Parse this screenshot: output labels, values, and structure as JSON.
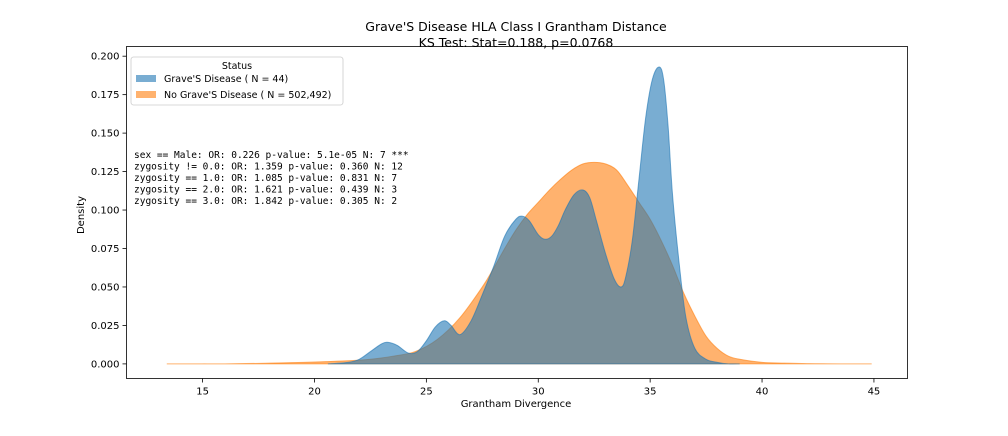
{
  "chart_data": {
    "type": "area",
    "title": "Grave'S Disease HLA Class I Grantham Distance",
    "subtitle": "KS Test: Stat=0.188, p=0.0768",
    "xlabel": "Grantham Divergence",
    "ylabel": "Density",
    "xlim": [
      11.6,
      46.5
    ],
    "ylim": [
      -0.0095,
      0.2063
    ],
    "xticks": [
      15,
      20,
      25,
      30,
      35,
      40,
      45
    ],
    "yticks": [
      0.0,
      0.025,
      0.05,
      0.075,
      0.1,
      0.125,
      0.15,
      0.175,
      0.2
    ],
    "grid": false,
    "legend": {
      "title": "Status",
      "placement": "top-left",
      "entries": [
        "Grave'S Disease ( N = 44)",
        "No Grave'S Disease ( N = 502,492)"
      ]
    },
    "annotations": [
      "sex == Male: OR: 0.226 p-value: 5.1e-05 N: 7 ***",
      "zygosity != 0.0: OR: 1.359 p-value: 0.360 N: 12",
      "zygosity == 1.0: OR: 1.085 p-value: 0.831 N: 7",
      "zygosity == 2.0: OR: 1.621 p-value: 0.439 N: 3",
      "zygosity == 3.0: OR: 1.842 p-value: 0.305 N: 2"
    ],
    "series": [
      {
        "name": "Grave'S Disease ( N = 44)",
        "color": "#1f77b4",
        "x": [
          20.6,
          21.5,
          22.0,
          22.5,
          23.0,
          23.3,
          23.7,
          24.2,
          24.6,
          25.0,
          25.4,
          25.8,
          26.1,
          26.5,
          27.0,
          27.5,
          28.0,
          28.5,
          29.0,
          29.3,
          29.6,
          30.0,
          30.3,
          30.6,
          30.9,
          31.2,
          31.6,
          32.0,
          32.3,
          32.6,
          33.0,
          33.4,
          33.7,
          33.9,
          34.2,
          34.5,
          34.8,
          35.1,
          35.4,
          35.6,
          35.8,
          36.0,
          36.3,
          36.6,
          37.0,
          37.5,
          38.0,
          38.5,
          39.0
        ],
        "values": [
          0.0,
          0.001,
          0.003,
          0.008,
          0.013,
          0.014,
          0.012,
          0.007,
          0.008,
          0.015,
          0.024,
          0.028,
          0.025,
          0.019,
          0.028,
          0.045,
          0.063,
          0.083,
          0.094,
          0.096,
          0.093,
          0.084,
          0.081,
          0.083,
          0.09,
          0.1,
          0.11,
          0.113,
          0.108,
          0.093,
          0.072,
          0.055,
          0.05,
          0.056,
          0.08,
          0.12,
          0.16,
          0.185,
          0.193,
          0.185,
          0.155,
          0.11,
          0.065,
          0.03,
          0.01,
          0.003,
          0.001,
          0.0,
          0.0
        ]
      },
      {
        "name": "No Grave'S Disease ( N = 502,492)",
        "color": "#ff7f0e",
        "x": [
          13.4,
          16.0,
          18.0,
          19.5,
          20.5,
          21.5,
          22.5,
          23.5,
          24.5,
          25.5,
          26.5,
          27.5,
          28.0,
          28.5,
          29.0,
          29.5,
          30.0,
          30.5,
          31.0,
          31.5,
          32.0,
          32.5,
          33.0,
          33.5,
          34.0,
          34.5,
          35.0,
          35.5,
          36.0,
          36.5,
          37.0,
          37.5,
          38.0,
          38.5,
          39.0,
          40.0,
          41.0,
          42.0,
          43.5,
          44.9
        ],
        "values": [
          0.0,
          0.0,
          0.0005,
          0.001,
          0.0015,
          0.002,
          0.003,
          0.005,
          0.008,
          0.016,
          0.03,
          0.05,
          0.062,
          0.075,
          0.087,
          0.097,
          0.105,
          0.113,
          0.12,
          0.126,
          0.13,
          0.131,
          0.13,
          0.126,
          0.116,
          0.105,
          0.094,
          0.08,
          0.064,
          0.046,
          0.031,
          0.018,
          0.01,
          0.005,
          0.003,
          0.001,
          0.0005,
          0.0002,
          0.0,
          0.0
        ]
      }
    ]
  }
}
